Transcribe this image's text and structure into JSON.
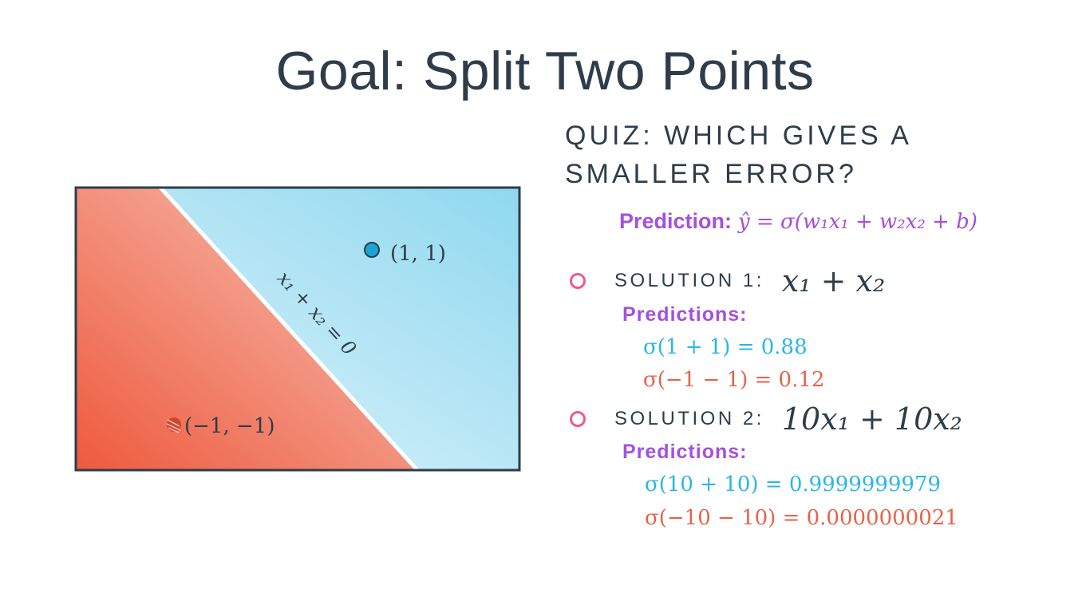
{
  "title": "Goal: Split Two Points",
  "quiz": {
    "line1": "QUIZ:  WHICH GIVES A",
    "line2": "SMALLER ERROR?"
  },
  "diagram": {
    "line_label": "x₁ + x₂ = 0",
    "point_blue_label": "(1, 1)",
    "point_red_label": "(−1, −1)",
    "colors": {
      "red_region": "#ee5a3d",
      "blue_region": "#8fd8ef",
      "point_blue": "#1aa4d8",
      "point_red": "#d44a33"
    }
  },
  "prediction": {
    "label": "Prediction:",
    "formula": "ŷ = σ(w₁x₁ + w₂x₂ + b)"
  },
  "solutions": [
    {
      "label": "SOLUTION 1:",
      "formula": "x₁ + x₂",
      "predictions_label": "Predictions:",
      "pred_blue": "σ(1 + 1) = 0.88",
      "pred_red": "σ(−1 − 1) = 0.12"
    },
    {
      "label": "SOLUTION 2:",
      "formula": "10x₁ + 10x₂",
      "predictions_label": "Predictions:",
      "pred_blue": "σ(10 + 10) = 0.9999999979",
      "pred_red": "σ(−10 − 10) = 0.0000000021"
    }
  ]
}
